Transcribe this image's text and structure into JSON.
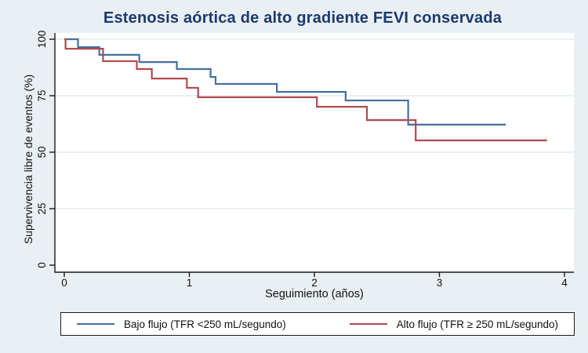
{
  "title": "Estenosis aórtica de alto gradiente FEVI conservada",
  "colors": {
    "background": "#e9eff3",
    "plot_background": "#ffffff",
    "gridline": "#e2eaf1",
    "axis": "#000000",
    "title_text": "#1b3a6f",
    "series_blue": "#44709e",
    "series_red": "#b04a50"
  },
  "chart_data": {
    "type": "line",
    "subtype": "kaplan-meier-step",
    "title": "Estenosis aórtica de alto gradiente FEVI conservada",
    "xlabel": "Seguimiento (años)",
    "ylabel": "Supervivencia libre de eventos (%)",
    "xlim": [
      0,
      4.15
    ],
    "ylim": [
      0,
      100
    ],
    "xticks": [
      0,
      1,
      2,
      3,
      4
    ],
    "yticks": [
      0,
      25,
      50,
      75,
      100
    ],
    "grid": true,
    "legend_position": "bottom",
    "series": [
      {
        "name": "Bajo flujo (TFR <250 mL/segundo)",
        "color": "#44709e",
        "end_t": 3.53,
        "points": [
          [
            0,
            100
          ],
          [
            0.11,
            96.5
          ],
          [
            0.28,
            93.1
          ],
          [
            0.6,
            89.9
          ],
          [
            0.9,
            86.8
          ],
          [
            1.17,
            83.3
          ],
          [
            1.21,
            80.2
          ],
          [
            1.7,
            76.7
          ],
          [
            2.25,
            72.9
          ],
          [
            2.75,
            62.2
          ]
        ]
      },
      {
        "name": "Alto flujo (TFR ≥ 250 mL/segundo)",
        "color": "#b04a50",
        "end_t": 3.86,
        "points": [
          [
            0,
            100
          ],
          [
            0.01,
            95.8
          ],
          [
            0.31,
            90.3
          ],
          [
            0.58,
            86.8
          ],
          [
            0.7,
            82.6
          ],
          [
            0.98,
            78.5
          ],
          [
            1.07,
            74.3
          ],
          [
            2.02,
            70.1
          ],
          [
            2.42,
            64.2
          ],
          [
            2.81,
            55.2
          ]
        ]
      }
    ]
  }
}
